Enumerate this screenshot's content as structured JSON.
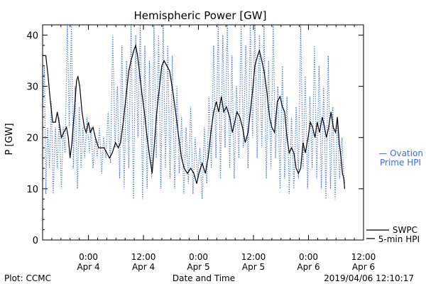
{
  "footer": {
    "plot_credit": "Plot: CCMC",
    "timestamp": "2019/04/06 12:10:17"
  },
  "chart_data": {
    "type": "line",
    "title": "Hemispheric Power [GW]",
    "xlabel": "Date and Time",
    "ylabel": "P [GW]",
    "ylim": [
      0,
      42
    ],
    "yticks": [
      0,
      10,
      20,
      30,
      40
    ],
    "xlim_hours": [
      -10,
      60
    ],
    "xticks": [
      {
        "hour": 0,
        "time": "0:00",
        "date": "Apr 4"
      },
      {
        "hour": 12,
        "time": "12:00",
        "date": "Apr 4"
      },
      {
        "hour": 24,
        "time": "0:00",
        "date": "Apr 5"
      },
      {
        "hour": 36,
        "time": "12:00",
        "date": "Apr 5"
      },
      {
        "hour": 48,
        "time": "0:00",
        "date": "Apr 6"
      },
      {
        "hour": 60,
        "time": "12:00",
        "date": "Apr 6"
      }
    ],
    "x_hour_zero": "Apr 4 0:00",
    "grid": false,
    "series": [
      {
        "name": "SWPC 5-min HPI",
        "legend_lines": [
          "SWPC",
          "5-min HPI"
        ],
        "color": "#000000",
        "style": "solid",
        "points": [
          [
            -10,
            36
          ],
          [
            -9.3,
            36
          ],
          [
            -8.8,
            32
          ],
          [
            -8.3,
            27
          ],
          [
            -7.8,
            23
          ],
          [
            -7.2,
            23
          ],
          [
            -6.8,
            25
          ],
          [
            -6.4,
            23
          ],
          [
            -5.9,
            20
          ],
          [
            -5.4,
            21
          ],
          [
            -4.8,
            22
          ],
          [
            -4.4,
            20
          ],
          [
            -4.0,
            16
          ],
          [
            -3.6,
            19
          ],
          [
            -3.1,
            25
          ],
          [
            -2.6,
            31
          ],
          [
            -2.3,
            32
          ],
          [
            -1.9,
            30
          ],
          [
            -1.4,
            25
          ],
          [
            -0.9,
            22
          ],
          [
            -0.5,
            21
          ],
          [
            0,
            23
          ],
          [
            0.4,
            21
          ],
          [
            1.0,
            22
          ],
          [
            1.5,
            20
          ],
          [
            2.2,
            18
          ],
          [
            2.8,
            18
          ],
          [
            3.4,
            18
          ],
          [
            4.0,
            17
          ],
          [
            4.6,
            16
          ],
          [
            5.2,
            17
          ],
          [
            5.9,
            19
          ],
          [
            6.5,
            18
          ],
          [
            7.0,
            19
          ],
          [
            7.6,
            23
          ],
          [
            8.2,
            28
          ],
          [
            8.8,
            33
          ],
          [
            9.3,
            35
          ],
          [
            9.9,
            37
          ],
          [
            10.3,
            38
          ],
          [
            10.7,
            36
          ],
          [
            11.1,
            33
          ],
          [
            11.6,
            29
          ],
          [
            12.2,
            25
          ],
          [
            12.8,
            20
          ],
          [
            13.4,
            16
          ],
          [
            13.9,
            13
          ],
          [
            14.4,
            19
          ],
          [
            14.9,
            25
          ],
          [
            15.5,
            30
          ],
          [
            16.0,
            34
          ],
          [
            16.5,
            35
          ],
          [
            17.1,
            34
          ],
          [
            17.7,
            33
          ],
          [
            18.4,
            29
          ],
          [
            19.0,
            25
          ],
          [
            19.7,
            20
          ],
          [
            20.3,
            16
          ],
          [
            20.9,
            14
          ],
          [
            21.6,
            13
          ],
          [
            22.3,
            14
          ],
          [
            23.0,
            13
          ],
          [
            23.6,
            11
          ],
          [
            24.1,
            13
          ],
          [
            24.8,
            15
          ],
          [
            25.5,
            13
          ],
          [
            26.1,
            16
          ],
          [
            26.7,
            21
          ],
          [
            27.3,
            25
          ],
          [
            27.9,
            27
          ],
          [
            28.4,
            25
          ],
          [
            29.0,
            28
          ],
          [
            29.5,
            25
          ],
          [
            30.1,
            26
          ],
          [
            30.8,
            24
          ],
          [
            31.4,
            21
          ],
          [
            31.9,
            23
          ],
          [
            32.4,
            25
          ],
          [
            33.0,
            24
          ],
          [
            33.6,
            22
          ],
          [
            34.2,
            19
          ],
          [
            34.8,
            21
          ],
          [
            35.3,
            25
          ],
          [
            35.8,
            29
          ],
          [
            36.3,
            34
          ],
          [
            36.9,
            36
          ],
          [
            37.3,
            37
          ],
          [
            37.8,
            35
          ],
          [
            38.3,
            33
          ],
          [
            38.9,
            29
          ],
          [
            39.5,
            24
          ],
          [
            40.0,
            22
          ],
          [
            40.6,
            21
          ],
          [
            41.2,
            27
          ],
          [
            41.8,
            28
          ],
          [
            42.3,
            26
          ],
          [
            42.8,
            25
          ],
          [
            43.3,
            20
          ],
          [
            43.8,
            17
          ],
          [
            44.3,
            18
          ],
          [
            44.8,
            17
          ],
          [
            45.3,
            14
          ],
          [
            45.8,
            13
          ],
          [
            46.3,
            14
          ],
          [
            46.8,
            19
          ],
          [
            47.3,
            17
          ],
          [
            47.9,
            20
          ],
          [
            48.4,
            23
          ],
          [
            48.9,
            22
          ],
          [
            49.4,
            20
          ],
          [
            49.9,
            23
          ],
          [
            50.4,
            21
          ],
          [
            51.0,
            24
          ],
          [
            51.5,
            22
          ],
          [
            51.9,
            20
          ],
          [
            52.4,
            22
          ],
          [
            52.9,
            25
          ],
          [
            53.4,
            22
          ],
          [
            53.9,
            21
          ],
          [
            54.3,
            24
          ],
          [
            54.7,
            19
          ],
          [
            55.1,
            16
          ],
          [
            55.4,
            13
          ],
          [
            55.7,
            12
          ],
          [
            55.9,
            10
          ]
        ]
      },
      {
        "name": "Ovation Prime HPI",
        "legend_lines": [
          "— Ovation",
          "Prime HPI"
        ],
        "color": "#3a6fd8",
        "style": "dotted",
        "points": [
          [
            -10,
            26
          ],
          [
            -9.6,
            34
          ],
          [
            -9.3,
            9
          ],
          [
            -8.9,
            22
          ],
          [
            -8.5,
            14
          ],
          [
            -8.1,
            27
          ],
          [
            -7.7,
            9
          ],
          [
            -7.2,
            22
          ],
          [
            -6.8,
            14
          ],
          [
            -6.4,
            24
          ],
          [
            -5.9,
            10
          ],
          [
            -5.5,
            22
          ],
          [
            -5.1,
            17
          ],
          [
            -4.6,
            42
          ],
          [
            -4.2,
            22
          ],
          [
            -3.7,
            42
          ],
          [
            -3.3,
            14
          ],
          [
            -2.9,
            30
          ],
          [
            -2.4,
            10
          ],
          [
            -2.0,
            26
          ],
          [
            -1.6,
            14
          ],
          [
            -1.2,
            22
          ],
          [
            -0.8,
            16
          ],
          [
            -0.3,
            24
          ],
          [
            0.2,
            17
          ],
          [
            0.6,
            22
          ],
          [
            1.0,
            14
          ],
          [
            1.5,
            20
          ],
          [
            1.9,
            16
          ],
          [
            2.4,
            22
          ],
          [
            2.9,
            13
          ],
          [
            3.3,
            20
          ],
          [
            3.8,
            16
          ],
          [
            4.3,
            25
          ],
          [
            4.8,
            15
          ],
          [
            5.3,
            40
          ],
          [
            5.8,
            18
          ],
          [
            6.3,
            30
          ],
          [
            6.8,
            12
          ],
          [
            7.3,
            38
          ],
          [
            7.8,
            10
          ],
          [
            8.3,
            35
          ],
          [
            8.8,
            14
          ],
          [
            9.3,
            42
          ],
          [
            9.8,
            8
          ],
          [
            10.3,
            40
          ],
          [
            10.8,
            20
          ],
          [
            11.3,
            42
          ],
          [
            11.8,
            8
          ],
          [
            12.3,
            38
          ],
          [
            12.8,
            10
          ],
          [
            13.3,
            35
          ],
          [
            13.8,
            12
          ],
          [
            14.3,
            42
          ],
          [
            14.8,
            16
          ],
          [
            15.3,
            40
          ],
          [
            15.8,
            10
          ],
          [
            16.3,
            42
          ],
          [
            16.8,
            14
          ],
          [
            17.3,
            38
          ],
          [
            17.8,
            12
          ],
          [
            18.3,
            36
          ],
          [
            18.8,
            10
          ],
          [
            19.3,
            30
          ],
          [
            19.8,
            13
          ],
          [
            20.3,
            24
          ],
          [
            20.8,
            9
          ],
          [
            21.3,
            22
          ],
          [
            21.8,
            11
          ],
          [
            22.3,
            26
          ],
          [
            22.8,
            9
          ],
          [
            23.3,
            20
          ],
          [
            23.8,
            12
          ],
          [
            24.3,
            18
          ],
          [
            24.8,
            8
          ],
          [
            25.3,
            22
          ],
          [
            25.8,
            11
          ],
          [
            26.3,
            28
          ],
          [
            26.8,
            14
          ],
          [
            27.3,
            38
          ],
          [
            27.8,
            16
          ],
          [
            28.3,
            42
          ],
          [
            28.8,
            12
          ],
          [
            29.3,
            40
          ],
          [
            29.8,
            18
          ],
          [
            30.3,
            42
          ],
          [
            30.8,
            14
          ],
          [
            31.3,
            36
          ],
          [
            31.8,
            12
          ],
          [
            32.3,
            30
          ],
          [
            32.8,
            16
          ],
          [
            33.3,
            42
          ],
          [
            33.8,
            18
          ],
          [
            34.3,
            38
          ],
          [
            34.8,
            14
          ],
          [
            35.3,
            42
          ],
          [
            35.8,
            20
          ],
          [
            36.3,
            42
          ],
          [
            36.8,
            16
          ],
          [
            37.3,
            40
          ],
          [
            37.8,
            18
          ],
          [
            38.3,
            42
          ],
          [
            38.8,
            12
          ],
          [
            39.3,
            35
          ],
          [
            39.8,
            14
          ],
          [
            40.3,
            42
          ],
          [
            40.8,
            16
          ],
          [
            41.3,
            30
          ],
          [
            41.8,
            10
          ],
          [
            42.3,
            34
          ],
          [
            42.8,
            12
          ],
          [
            43.3,
            28
          ],
          [
            43.8,
            9
          ],
          [
            44.3,
            24
          ],
          [
            44.8,
            10
          ],
          [
            45.3,
            26
          ],
          [
            45.8,
            12
          ],
          [
            46.3,
            42
          ],
          [
            46.8,
            14
          ],
          [
            47.3,
            32
          ],
          [
            47.8,
            10
          ],
          [
            48.3,
            28
          ],
          [
            48.8,
            14
          ],
          [
            49.3,
            38
          ],
          [
            49.8,
            12
          ],
          [
            50.3,
            34
          ],
          [
            50.8,
            10
          ],
          [
            51.3,
            30
          ],
          [
            51.8,
            8
          ],
          [
            52.3,
            36
          ],
          [
            52.8,
            10
          ],
          [
            53.3,
            26
          ],
          [
            53.8,
            8
          ],
          [
            54.3,
            24
          ],
          [
            54.8,
            12
          ],
          [
            55.3,
            20
          ],
          [
            55.6,
            14
          ],
          [
            55.9,
            11
          ]
        ]
      }
    ]
  }
}
